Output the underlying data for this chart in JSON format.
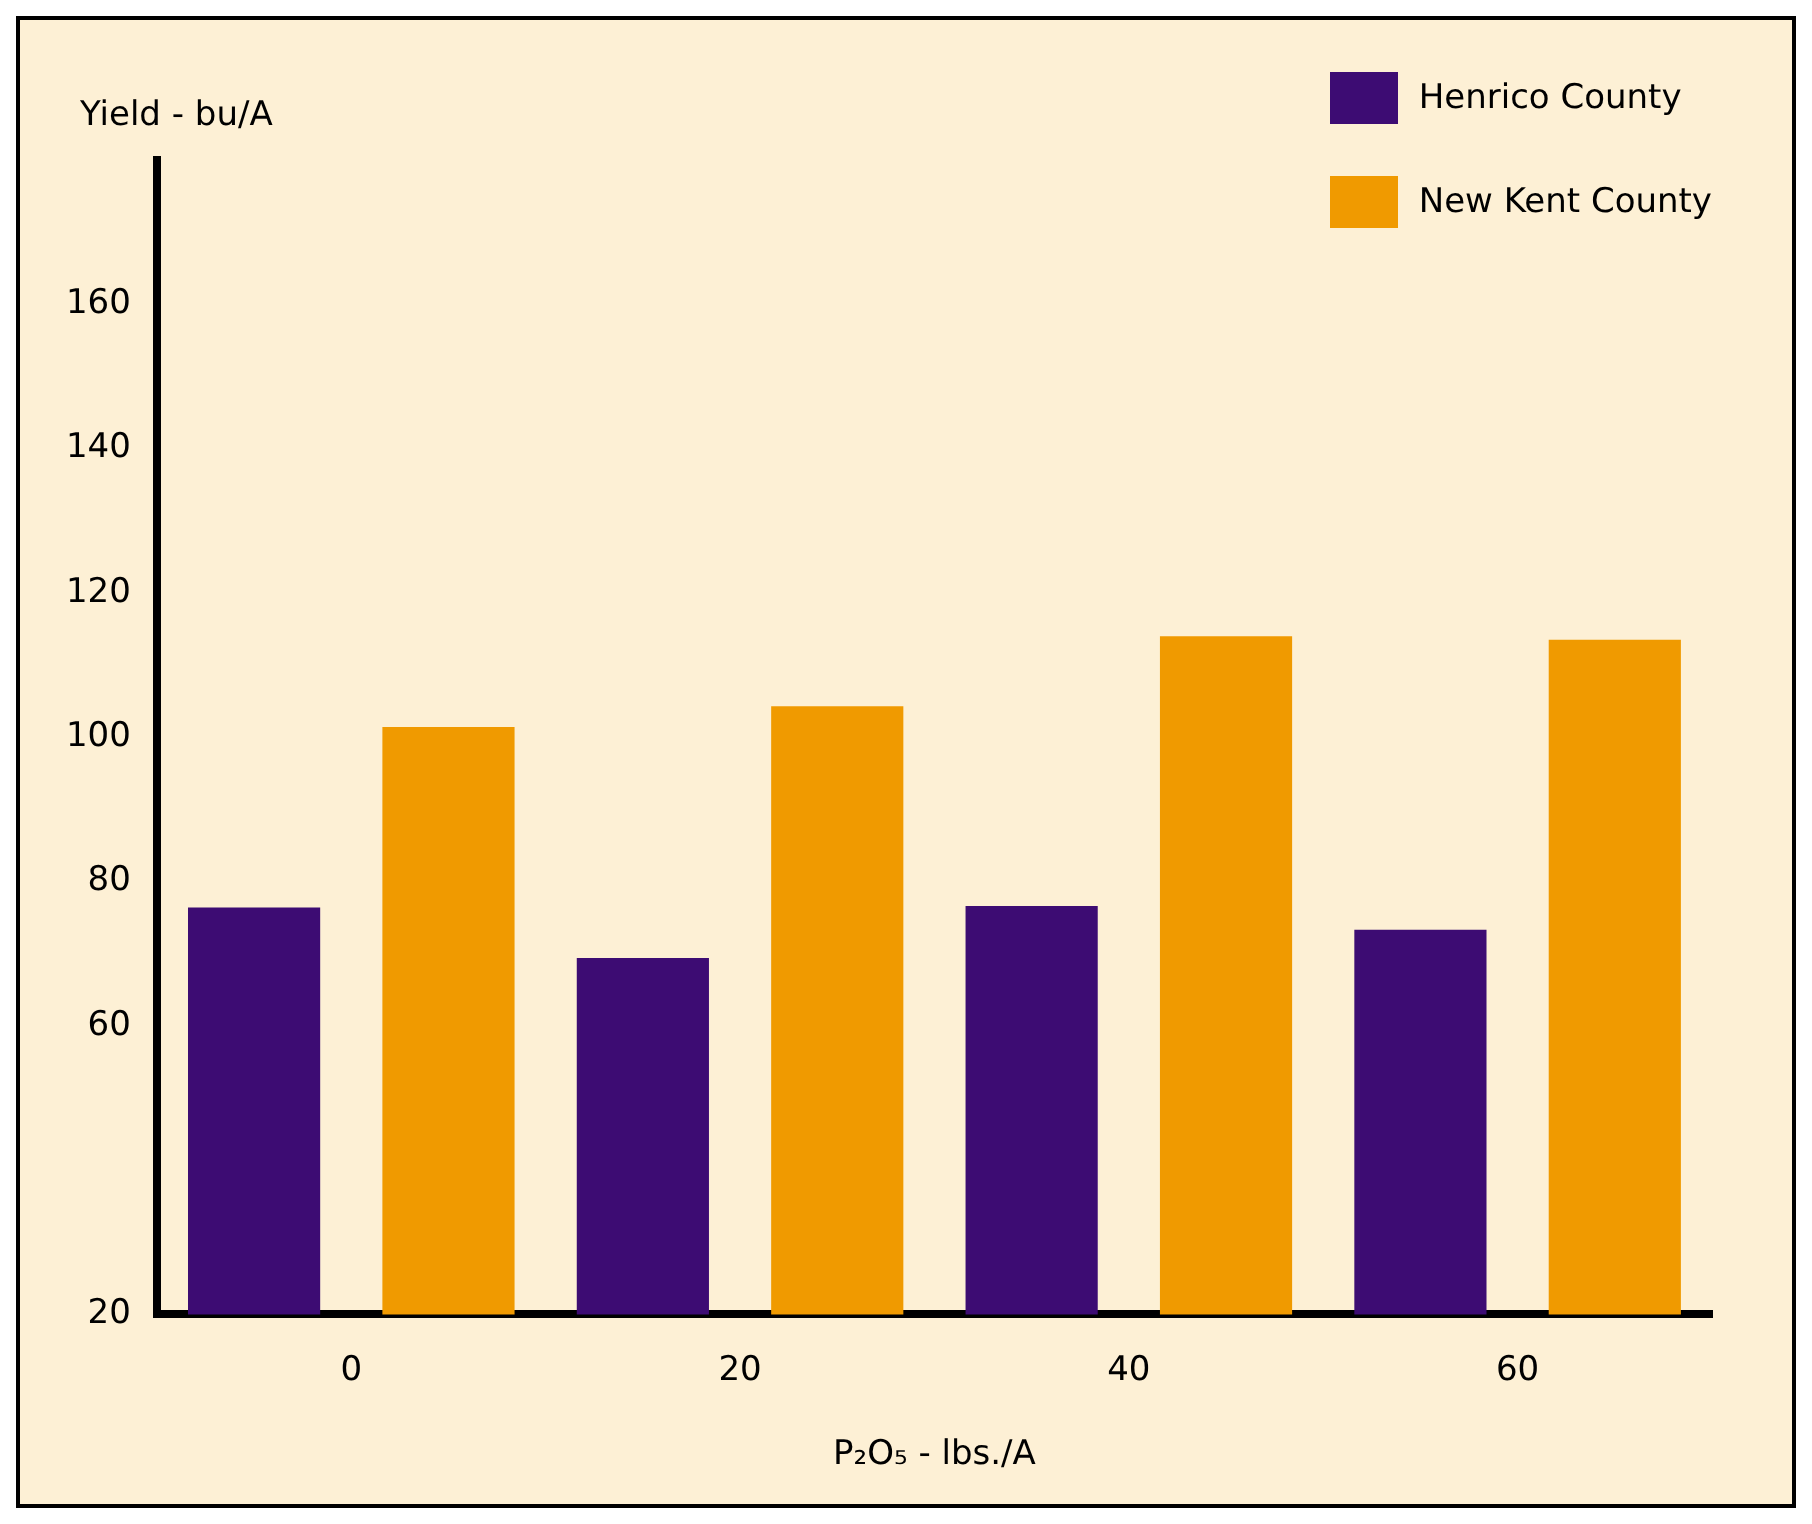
{
  "chart_data": {
    "type": "bar",
    "xlabel": "P₂O₅ - lbs./A",
    "ylabel": "Yield - bu/A",
    "categories": [
      "0",
      "20",
      "40",
      "60"
    ],
    "series": [
      {
        "name": "Henrico County",
        "color": "#3d0c73",
        "values": [
          76.4,
          69.4,
          76.6,
          73.3
        ]
      },
      {
        "name": "New Kent County",
        "color": "#f09a00",
        "values": [
          101.4,
          104.3,
          114,
          113.5
        ]
      }
    ],
    "ylim": [
      20,
      180
    ],
    "yticks": [
      20,
      60,
      80,
      100,
      120,
      140,
      160
    ],
    "grid": false,
    "legend": "top right"
  }
}
